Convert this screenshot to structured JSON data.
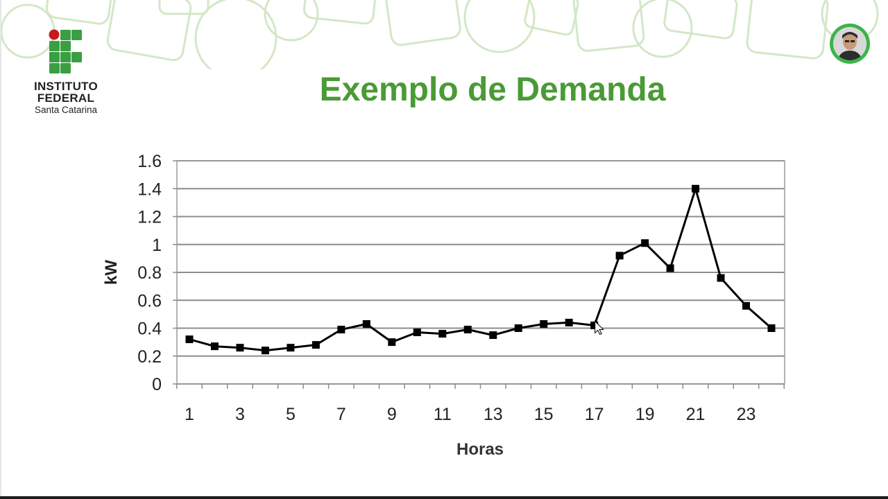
{
  "slide": {
    "title": "Exemplo de Demanda",
    "logo": {
      "line1": "INSTITUTO",
      "line2": "FEDERAL",
      "line3": "Santa Catarina"
    },
    "colors": {
      "title": "#4a9a35",
      "logo_green": "#3a9e43",
      "logo_red": "#c8191e",
      "deco": "#cfe5c0",
      "avatar_ring": "#3bb54a"
    }
  },
  "chart_data": {
    "type": "line",
    "xlabel": "Horas",
    "ylabel": "kW",
    "x": [
      1,
      2,
      3,
      4,
      5,
      6,
      7,
      8,
      9,
      10,
      11,
      12,
      13,
      14,
      15,
      16,
      17,
      18,
      19,
      20,
      21,
      22,
      23,
      24
    ],
    "values": [
      0.32,
      0.27,
      0.26,
      0.24,
      0.26,
      0.28,
      0.39,
      0.43,
      0.3,
      0.37,
      0.36,
      0.39,
      0.35,
      0.4,
      0.43,
      0.44,
      0.42,
      0.92,
      1.01,
      0.83,
      1.4,
      0.76,
      0.56,
      0.4
    ],
    "xticks": [
      "1",
      "3",
      "5",
      "7",
      "9",
      "11",
      "13",
      "15",
      "17",
      "19",
      "21",
      "23"
    ],
    "yticks": [
      "0",
      "0.2",
      "0.4",
      "0.6",
      "0.8",
      "1",
      "1.2",
      "1.4",
      "1.6"
    ],
    "ylim": [
      0,
      1.6
    ],
    "grid": true,
    "legend": "none"
  }
}
